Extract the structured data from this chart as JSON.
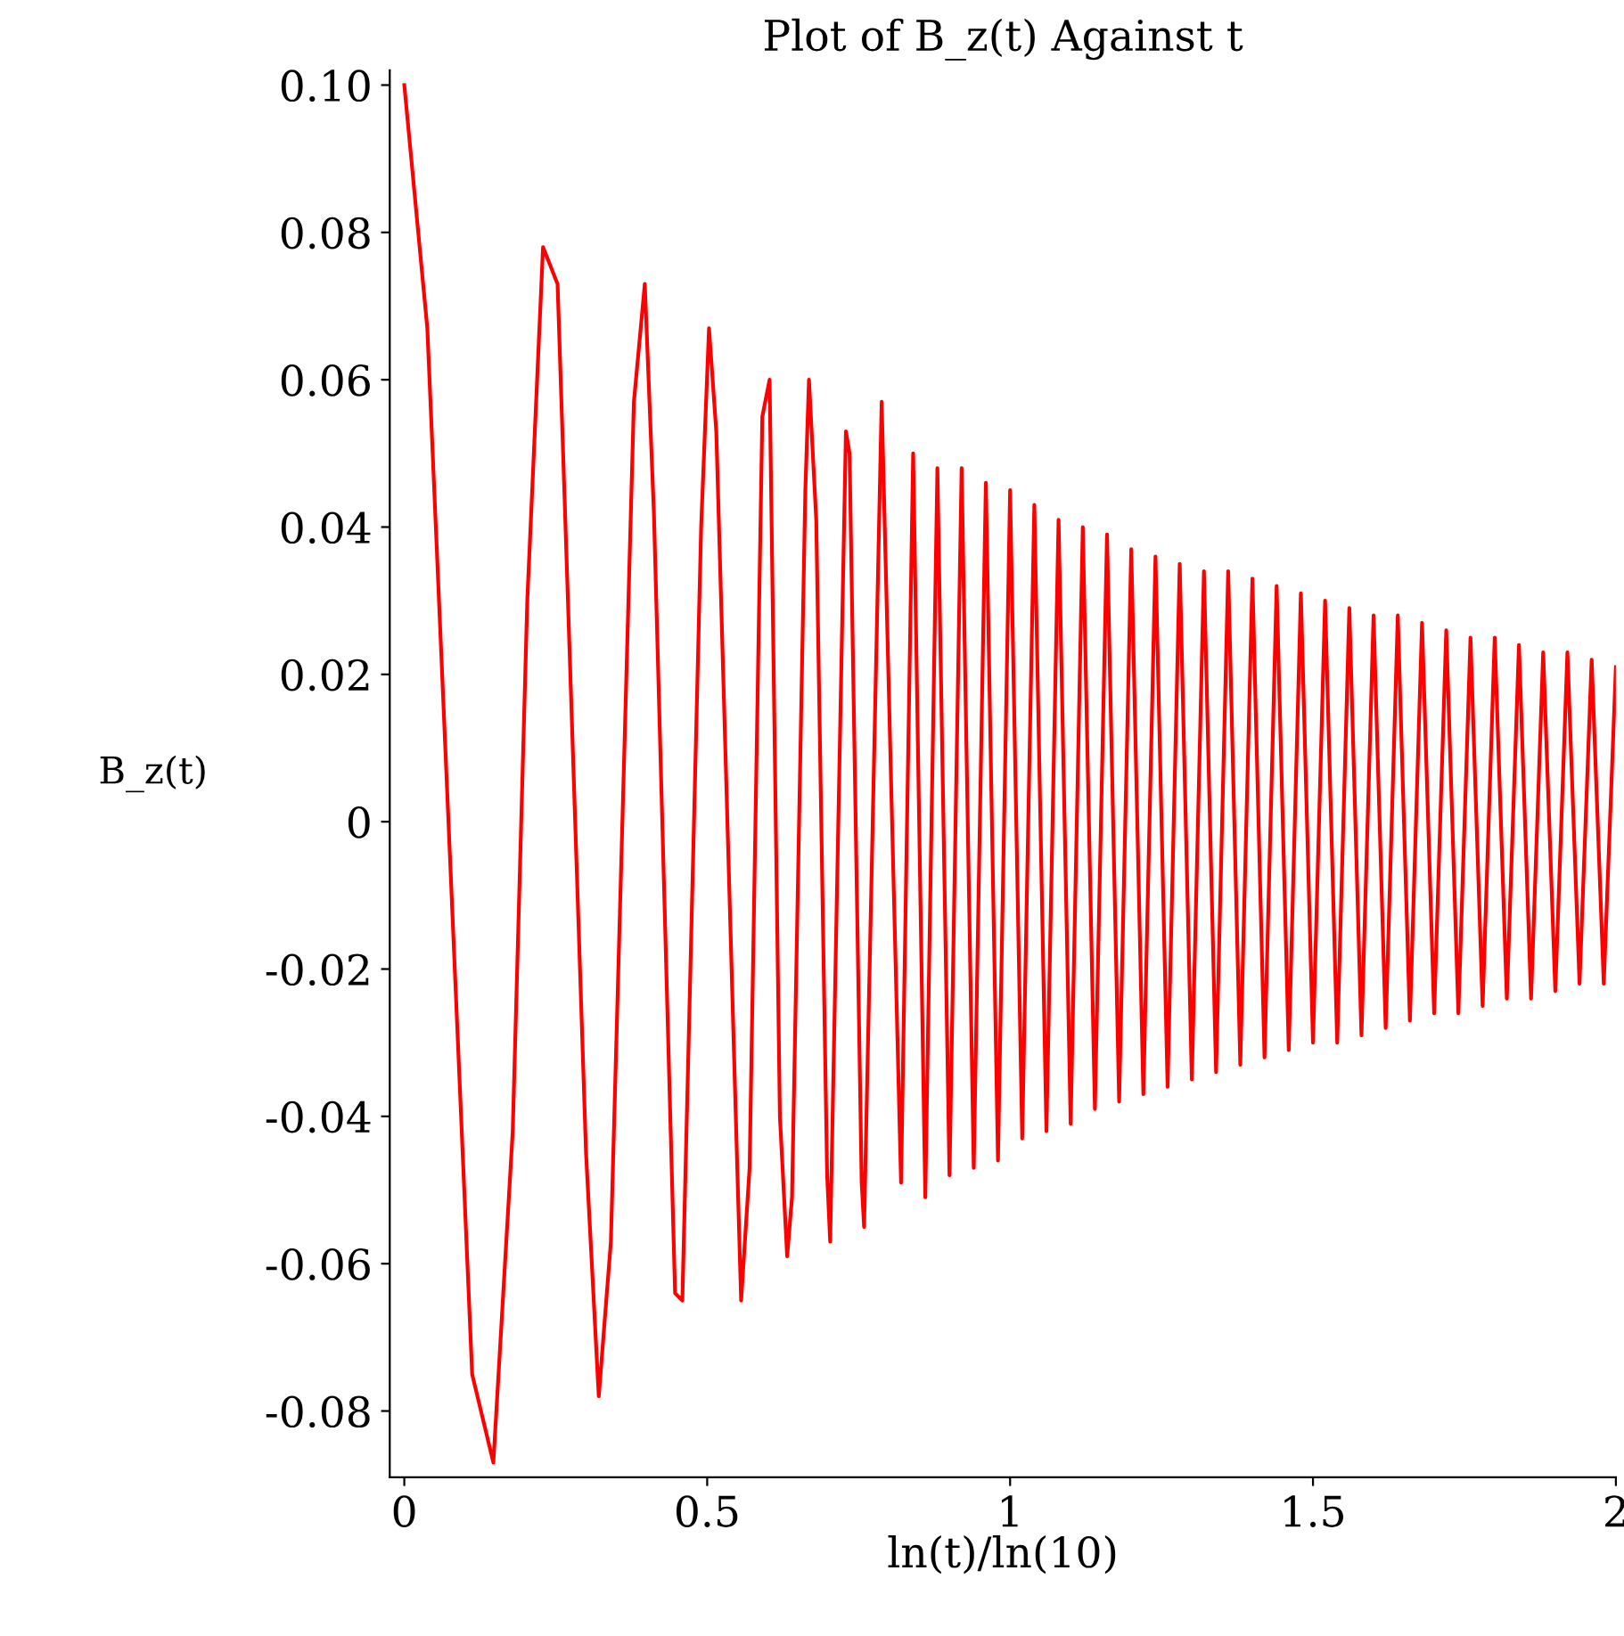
{
  "chart_data": {
    "type": "line",
    "title": "Plot of B_z(t) Against t",
    "xlabel": "ln(t)/ln(10)",
    "ylabel": "B_z(t)",
    "xlim": [
      -0.024,
      2
    ],
    "ylim": [
      -0.089,
      0.102
    ],
    "xticks": [
      0,
      0.5,
      1,
      1.5,
      2
    ],
    "yticks": [
      {
        "value": -0.08,
        "label": "-0.08"
      },
      {
        "value": -0.06,
        "label": "-0.06"
      },
      {
        "value": -0.04,
        "label": "-0.04"
      },
      {
        "value": -0.02,
        "label": "-0.02"
      },
      {
        "value": 0,
        "label": "0"
      },
      {
        "value": 0.02,
        "label": "0.02"
      },
      {
        "value": 0.04,
        "label": "0.04"
      },
      {
        "value": 0.06,
        "label": "0.06"
      },
      {
        "value": 0.08,
        "label": "0.08"
      },
      {
        "value": 0.1,
        "label": "0.10"
      }
    ],
    "grid": false,
    "legend": false,
    "marker": "none",
    "line_style": "solid",
    "series": [
      {
        "color": "#ff0000",
        "x": [
          0,
          0.038,
          0.112,
          0.147,
          0.179,
          0.203,
          0.229,
          0.253,
          0.3,
          0.321,
          0.341,
          0.379,
          0.397,
          0.412,
          0.447,
          0.459,
          0.49,
          0.503,
          0.515,
          0.55,
          0.556,
          0.57,
          0.591,
          0.603,
          0.62,
          0.632,
          0.64,
          0.662,
          0.668,
          0.68,
          0.698,
          0.703,
          0.729,
          0.735,
          0.755,
          0.759,
          0.788,
          0.82,
          0.84,
          0.86,
          0.88,
          0.9,
          0.92,
          0.94,
          0.96,
          0.98,
          1.0,
          1.02,
          1.04,
          1.06,
          1.08,
          1.1,
          1.12,
          1.14,
          1.16,
          1.18,
          1.2,
          1.22,
          1.24,
          1.26,
          1.28,
          1.3,
          1.32,
          1.34,
          1.36,
          1.38,
          1.4,
          1.42,
          1.44,
          1.46,
          1.48,
          1.5,
          1.52,
          1.54,
          1.56,
          1.58,
          1.6,
          1.62,
          1.64,
          1.66,
          1.68,
          1.7,
          1.72,
          1.74,
          1.76,
          1.78,
          1.8,
          1.82,
          1.84,
          1.86,
          1.88,
          1.9,
          1.92,
          1.94,
          1.96,
          1.98,
          2.0
        ],
        "values": [
          0.1,
          0.067,
          -0.075,
          -0.087,
          -0.042,
          0.03,
          0.078,
          0.073,
          -0.045,
          -0.078,
          -0.057,
          0.057,
          0.073,
          0.042,
          -0.064,
          -0.065,
          0.04,
          0.067,
          0.053,
          -0.048,
          -0.065,
          -0.047,
          0.055,
          0.06,
          -0.04,
          -0.059,
          -0.051,
          0.045,
          0.06,
          0.041,
          -0.048,
          -0.057,
          0.053,
          0.05,
          -0.049,
          -0.055,
          0.057,
          -0.049,
          0.05,
          -0.051,
          0.048,
          -0.048,
          0.048,
          -0.047,
          0.046,
          -0.046,
          0.045,
          -0.043,
          0.043,
          -0.042,
          0.041,
          -0.041,
          0.04,
          -0.039,
          0.039,
          -0.038,
          0.037,
          -0.037,
          0.036,
          -0.036,
          0.035,
          -0.035,
          0.034,
          -0.034,
          0.034,
          -0.033,
          0.033,
          -0.032,
          0.032,
          -0.031,
          0.031,
          -0.03,
          0.03,
          -0.03,
          0.029,
          -0.029,
          0.028,
          -0.028,
          0.028,
          -0.027,
          0.027,
          -0.026,
          0.026,
          -0.026,
          0.025,
          -0.025,
          0.025,
          -0.024,
          0.024,
          -0.024,
          0.023,
          -0.023,
          0.023,
          -0.022,
          0.022,
          -0.022,
          0.021
        ]
      }
    ]
  }
}
